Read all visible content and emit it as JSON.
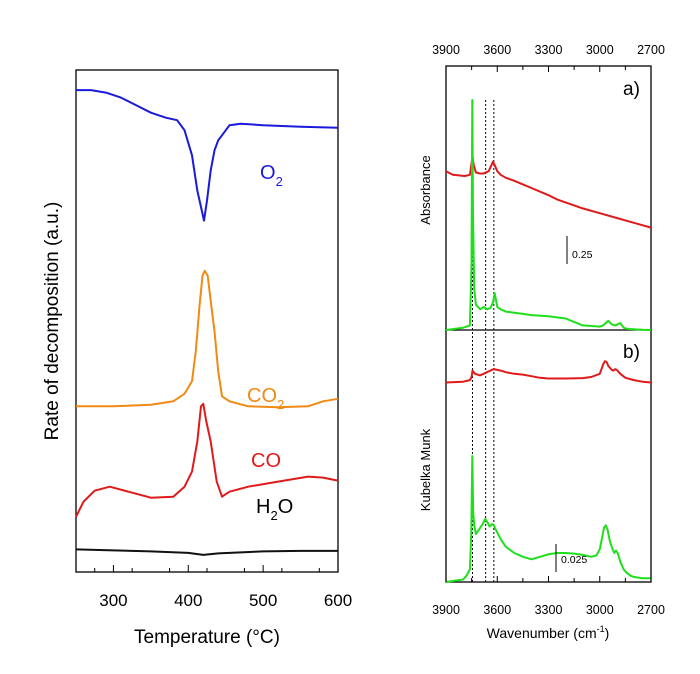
{
  "chart_data": [
    {
      "type": "line",
      "title": "",
      "xlabel": "Temperature (°C)",
      "ylabel": "Rate of decomposition (a.u.)",
      "xlim": [
        250,
        600
      ],
      "xticks": [
        300,
        400,
        500,
        600
      ],
      "xtick_labels": [
        "300",
        "400",
        "500",
        "600"
      ],
      "y_units": "arbitrary (offset traces)",
      "series": [
        {
          "name": "O2",
          "label_main": "O",
          "label_sub": "2",
          "color": "#1a1adb",
          "x": [
            250,
            270,
            290,
            310,
            330,
            350,
            370,
            385,
            395,
            405,
            412,
            418,
            421,
            425,
            430,
            435,
            440,
            445,
            455,
            470,
            500,
            550,
            600
          ],
          "y": [
            0.96,
            0.96,
            0.955,
            0.945,
            0.93,
            0.915,
            0.905,
            0.9,
            0.88,
            0.83,
            0.76,
            0.72,
            0.7,
            0.74,
            0.8,
            0.84,
            0.86,
            0.87,
            0.89,
            0.893,
            0.89,
            0.887,
            0.885
          ]
        },
        {
          "name": "CO2",
          "label_main": "CO",
          "label_sub": "2",
          "color": "#f08a14",
          "x": [
            250,
            300,
            350,
            380,
            395,
            405,
            410,
            415,
            419,
            422,
            426,
            430,
            435,
            440,
            445,
            455,
            480,
            520,
            560,
            580,
            600
          ],
          "y": [
            0.33,
            0.33,
            0.333,
            0.34,
            0.355,
            0.38,
            0.44,
            0.53,
            0.59,
            0.6,
            0.59,
            0.54,
            0.48,
            0.4,
            0.35,
            0.34,
            0.33,
            0.328,
            0.33,
            0.34,
            0.345
          ]
        },
        {
          "name": "CO",
          "label_main": "CO",
          "label_sub": "",
          "color": "#e01a1a",
          "x": [
            250,
            260,
            275,
            295,
            320,
            350,
            380,
            395,
            405,
            412,
            417,
            420,
            424,
            430,
            438,
            445,
            455,
            480,
            520,
            560,
            580,
            600
          ],
          "y": [
            0.11,
            0.14,
            0.162,
            0.17,
            0.16,
            0.148,
            0.15,
            0.17,
            0.2,
            0.26,
            0.33,
            0.335,
            0.3,
            0.26,
            0.18,
            0.15,
            0.16,
            0.17,
            0.18,
            0.19,
            0.188,
            0.182
          ]
        },
        {
          "name": "H2O",
          "label_main": "H",
          "label_sub": "2",
          "label_tail": "O",
          "color": "#111111",
          "x": [
            250,
            300,
            350,
            400,
            420,
            440,
            500,
            550,
            600
          ],
          "y": [
            0.045,
            0.043,
            0.041,
            0.038,
            0.034,
            0.037,
            0.041,
            0.042,
            0.042
          ]
        }
      ]
    },
    {
      "type": "line",
      "panel": "a)",
      "title": "",
      "ylabel": "Absorbance",
      "xlim": [
        3900,
        2700
      ],
      "xticks": [
        3900,
        3600,
        3300,
        3000,
        2700
      ],
      "xtick_labels": [
        "3900",
        "3600",
        "3300",
        "3000",
        "2700"
      ],
      "top_axis_labels": [
        "3900",
        "3600",
        "3300",
        "3000",
        "2700"
      ],
      "scale_bar": "0.25",
      "reference_lines_cm1": [
        3745,
        3668,
        3620
      ],
      "series": [
        {
          "name": "red",
          "color": "#e01a1a",
          "x": [
            3900,
            3860,
            3790,
            3760,
            3745,
            3738,
            3725,
            3700,
            3680,
            3650,
            3625,
            3615,
            3600,
            3580,
            3550,
            3500,
            3450,
            3400,
            3300,
            3250,
            3200,
            3100,
            3000,
            2900,
            2800,
            2700
          ],
          "y": [
            0.64,
            0.61,
            0.6,
            0.61,
            0.76,
            0.69,
            0.63,
            0.62,
            0.622,
            0.64,
            0.72,
            0.69,
            0.64,
            0.61,
            0.585,
            0.56,
            0.53,
            0.5,
            0.44,
            0.405,
            0.38,
            0.33,
            0.29,
            0.25,
            0.21,
            0.17
          ]
        },
        {
          "name": "green",
          "color": "#1ee01a",
          "x": [
            3900,
            3850,
            3800,
            3760,
            3751,
            3746,
            3742,
            3735,
            3725,
            3700,
            3680,
            3660,
            3640,
            3625,
            3615,
            3600,
            3580,
            3550,
            3500,
            3450,
            3400,
            3300,
            3200,
            3100,
            3000,
            2980,
            2950,
            2930,
            2910,
            2880,
            2860,
            2840,
            2800,
            2750,
            2700
          ],
          "y": [
            0.0,
            0.005,
            0.01,
            0.02,
            0.28,
            1.0,
            0.5,
            0.18,
            0.11,
            0.09,
            0.1,
            0.09,
            0.095,
            0.12,
            0.16,
            0.1,
            0.09,
            0.08,
            0.075,
            0.07,
            0.065,
            0.06,
            0.05,
            0.02,
            0.015,
            0.02,
            0.04,
            0.025,
            0.02,
            0.03,
            0.01,
            0.005,
            0.003,
            0.001,
            0.0
          ]
        }
      ]
    },
    {
      "type": "line",
      "panel": "b)",
      "title": "",
      "xlabel_main": "Wavenumber (cm",
      "xlabel_sup": "-1",
      "xlabel_end": ")",
      "ylabel": "Kubelka Munk",
      "xlim": [
        3900,
        2700
      ],
      "xticks": [
        3900,
        3600,
        3300,
        3000,
        2700
      ],
      "xtick_labels": [
        "3900",
        "3600",
        "3300",
        "3000",
        "2700"
      ],
      "scale_bar": "0.025",
      "reference_lines_cm1": [
        3745,
        3668,
        3620
      ],
      "series": [
        {
          "name": "red",
          "color": "#e01a1a",
          "x": [
            3900,
            3850,
            3800,
            3760,
            3750,
            3745,
            3730,
            3700,
            3680,
            3660,
            3640,
            3620,
            3600,
            3580,
            3550,
            3500,
            3450,
            3400,
            3350,
            3300,
            3200,
            3100,
            3050,
            3000,
            2980,
            2970,
            2960,
            2950,
            2930,
            2920,
            2910,
            2900,
            2880,
            2850,
            2800,
            2750,
            2700
          ],
          "y": [
            0.69,
            0.695,
            0.7,
            0.72,
            0.76,
            0.84,
            0.8,
            0.78,
            0.8,
            0.82,
            0.84,
            0.86,
            0.85,
            0.84,
            0.82,
            0.8,
            0.79,
            0.77,
            0.75,
            0.74,
            0.74,
            0.745,
            0.76,
            0.8,
            0.92,
            0.96,
            0.95,
            0.9,
            0.85,
            0.84,
            0.86,
            0.85,
            0.8,
            0.75,
            0.72,
            0.7,
            0.69
          ]
        },
        {
          "name": "green",
          "color": "#1ee01a",
          "x": [
            3900,
            3850,
            3800,
            3780,
            3760,
            3752,
            3746,
            3741,
            3735,
            3725,
            3715,
            3700,
            3685,
            3670,
            3660,
            3645,
            3630,
            3620,
            3610,
            3595,
            3580,
            3550,
            3500,
            3450,
            3400,
            3350,
            3300,
            3250,
            3200,
            3150,
            3100,
            3050,
            3020,
            3000,
            2985,
            2975,
            2965,
            2955,
            2940,
            2925,
            2915,
            2905,
            2895,
            2880,
            2860,
            2840,
            2820,
            2800,
            2750,
            2700
          ],
          "y": [
            0.0,
            0.01,
            0.02,
            0.05,
            0.1,
            0.4,
            1.0,
            0.55,
            0.45,
            0.38,
            0.4,
            0.43,
            0.46,
            0.5,
            0.48,
            0.44,
            0.46,
            0.45,
            0.42,
            0.38,
            0.34,
            0.28,
            0.23,
            0.2,
            0.18,
            0.2,
            0.22,
            0.23,
            0.23,
            0.225,
            0.215,
            0.2,
            0.21,
            0.26,
            0.36,
            0.43,
            0.45,
            0.42,
            0.32,
            0.26,
            0.23,
            0.25,
            0.23,
            0.16,
            0.1,
            0.07,
            0.05,
            0.04,
            0.03,
            0.03
          ]
        }
      ]
    }
  ]
}
